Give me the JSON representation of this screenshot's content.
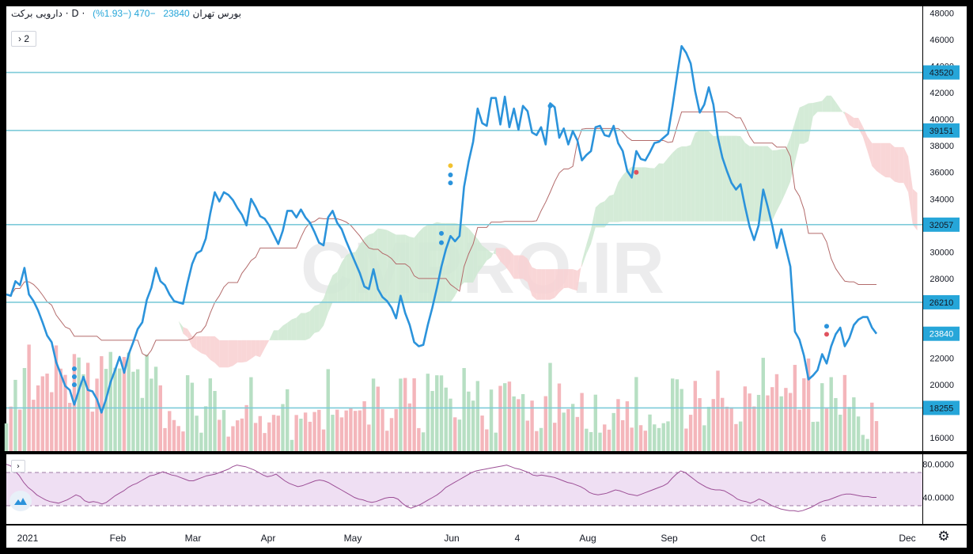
{
  "legend": {
    "symbol": "دارویی برکت",
    "interval": "D",
    "exchange": "بورس تهران",
    "last": "23840",
    "change": "−470 (−1.93%)",
    "collapse_label": "2"
  },
  "colors": {
    "price": "#2b93db",
    "hline": "#7ecbd9",
    "kijun": "#b36b6b",
    "cloud_bull": "#cfe9d3",
    "cloud_bear": "#f8d2d3",
    "vol_up": "#b7dfc3",
    "vol_down": "#f4b6bb",
    "rsi": "#9c4f96",
    "rsi_band": "#efdff3",
    "label_bg": "#26a6d9",
    "watermark": "#dddde0"
  },
  "watermark": "CMPRO.IR",
  "chart_data": {
    "type": "line",
    "title": "",
    "xlabel": "",
    "ylabel": "",
    "ylim": [
      15000,
      48500
    ],
    "grid": false,
    "x_ticks": [
      "2021",
      "Feb",
      "Mar",
      "Apr",
      "May",
      "Jun",
      "4",
      "Aug",
      "Sep",
      "Oct",
      "6",
      "Dec"
    ],
    "y_ticks": [
      16000,
      18000,
      20000,
      22000,
      24000,
      26000,
      28000,
      30000,
      32000,
      34000,
      36000,
      38000,
      40000,
      42000,
      44000,
      46000,
      48000
    ],
    "horizontal_levels": [
      43520,
      39151,
      32057,
      26210,
      18255
    ],
    "last_price_label": 23840,
    "series": [
      {
        "values": [
          26800,
          26700,
          27800,
          27500,
          28800,
          26800,
          26300,
          25600,
          24700,
          23700,
          23200,
          21700,
          20800,
          19900,
          19600,
          18500,
          19600,
          20600,
          19600,
          19500,
          18900,
          17900,
          18900,
          20200,
          21100,
          22100,
          20900,
          22300,
          23200,
          24200,
          24700,
          26400,
          27300,
          28800,
          27800,
          27500,
          26800,
          26300,
          26200,
          26100,
          27700,
          29100,
          29900,
          30100,
          31000,
          32900,
          34500,
          33800,
          34500,
          34300,
          33900,
          33300,
          32800,
          32000,
          34000,
          33400,
          32700,
          32500,
          32000,
          31300,
          30600,
          31600,
          33100,
          33100,
          32600,
          33200,
          32600,
          32200,
          31500,
          30700,
          30500,
          32600,
          33100,
          32200,
          31700,
          30800,
          30000,
          29200,
          28400,
          27400,
          27200,
          28700,
          27200,
          26600,
          26300,
          25800,
          25000,
          26700,
          25400,
          24500,
          23200,
          22900,
          23000,
          24500,
          25800,
          27300,
          28900,
          30200,
          31200,
          30800,
          31200,
          34900,
          36800,
          38300,
          40800,
          39700,
          39500,
          41600,
          41600,
          39600,
          41700,
          39400,
          40800,
          39200,
          41000,
          40600,
          39000,
          38800,
          39400,
          38100,
          41200,
          40900,
          38600,
          39300,
          38100,
          39100,
          38400,
          36900,
          37300,
          37600,
          39400,
          39500,
          38800,
          38700,
          39500,
          38200,
          37600,
          36100,
          35600,
          37600,
          37000,
          36900,
          37500,
          38200,
          38300,
          38600,
          38900,
          41000,
          43300,
          45500,
          45000,
          44200,
          42100,
          40500,
          41100,
          42400,
          41100,
          38600,
          37100,
          36100,
          35200,
          34700,
          35100,
          33400,
          31900,
          30900,
          32000,
          34700,
          33400,
          32000,
          30300,
          31700,
          30300,
          28900,
          24000,
          23400,
          22200,
          20400,
          20700,
          21100,
          22300,
          21600,
          22900,
          23800,
          24300,
          22900,
          23500,
          24500,
          24900,
          25100,
          25100,
          24300,
          23840
        ]
      }
    ]
  },
  "rsi": {
    "y_ticks": [
      "80.0000",
      "40.0000"
    ],
    "upper": 70,
    "lower": 30,
    "values": [
      80,
      78,
      72,
      66,
      58,
      52,
      48,
      43,
      40,
      37,
      35,
      34,
      33,
      35,
      37,
      40,
      43,
      41,
      36,
      34,
      35,
      34,
      32,
      34,
      38,
      42,
      45,
      48,
      52,
      55,
      57,
      60,
      63,
      66,
      67,
      69,
      71,
      69,
      67,
      66,
      64,
      62,
      60,
      60,
      62,
      64,
      66,
      67,
      68,
      70,
      72,
      74,
      77,
      79,
      78,
      77,
      75,
      73,
      70,
      67,
      65,
      66,
      68,
      64,
      60,
      57,
      55,
      53,
      54,
      56,
      58,
      60,
      61,
      60,
      58,
      55,
      52,
      49,
      46,
      43,
      40,
      38,
      37,
      35,
      34,
      35,
      37,
      39,
      40,
      40,
      38,
      33,
      29,
      27,
      29,
      31,
      34,
      37,
      40,
      43,
      47,
      52,
      55,
      58,
      61,
      64,
      67,
      70,
      72,
      73,
      74,
      75,
      76,
      77,
      78,
      79,
      77,
      75,
      74,
      72,
      70,
      67,
      66,
      67,
      66,
      65,
      64,
      62,
      60,
      58,
      57,
      55,
      53,
      50,
      46,
      44,
      43,
      44,
      45,
      47,
      49,
      48,
      46,
      44,
      43,
      42,
      44,
      46,
      48,
      50,
      52,
      54,
      57,
      63,
      68,
      72,
      70,
      66,
      62,
      58,
      55,
      52,
      50,
      49,
      49,
      48,
      45,
      42,
      38,
      36,
      35,
      33,
      35,
      38,
      36,
      33,
      30,
      28,
      26,
      25,
      24,
      24,
      23,
      24,
      26,
      28,
      31,
      34,
      36,
      37,
      39,
      41,
      43,
      44,
      44,
      43,
      42,
      41,
      41,
      40,
      40
    ]
  }
}
